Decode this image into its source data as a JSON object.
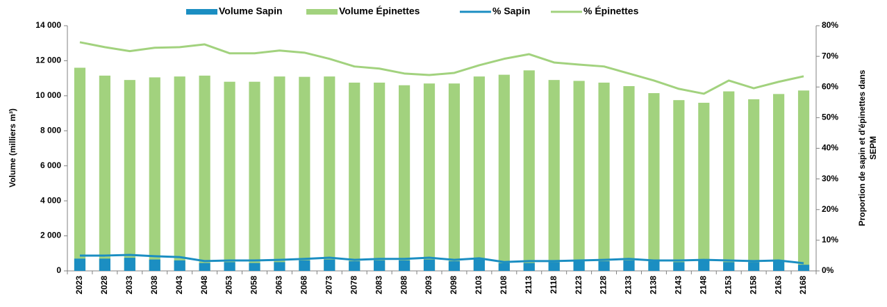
{
  "chart_data": {
    "type": "bar",
    "y_label": "Volume  (milliers m³)",
    "y2_label": [
      "Proportion de sapin et d'épinettes dans",
      "SEPM"
    ],
    "categories": [
      "2023",
      "2028",
      "2033",
      "2038",
      "2043",
      "2048",
      "2053",
      "2058",
      "2063",
      "2068",
      "2073",
      "2078",
      "2083",
      "2088",
      "2093",
      "2098",
      "2103",
      "2108",
      "2113",
      "2118",
      "2123",
      "2128",
      "2133",
      "2138",
      "2143",
      "2148",
      "2153",
      "2158",
      "2163",
      "2168"
    ],
    "series": [
      {
        "name": "Volume Sapin",
        "type": "bar",
        "color": "#1b8ec2",
        "values": [
          700,
          700,
          750,
          650,
          600,
          450,
          500,
          450,
          500,
          600,
          650,
          550,
          600,
          600,
          650,
          550,
          650,
          450,
          450,
          500,
          550,
          550,
          600,
          550,
          500,
          600,
          500,
          500,
          550,
          350
        ]
      },
      {
        "name": "Volume Épinettes",
        "type": "bar",
        "color": "#a2d27e",
        "values": [
          11600,
          11150,
          10900,
          11050,
          11100,
          11150,
          10800,
          10800,
          11100,
          11080,
          11100,
          10750,
          10750,
          10600,
          10700,
          10700,
          11100,
          11200,
          11450,
          10900,
          10850,
          10750,
          10550,
          10150,
          9750,
          9600,
          10250,
          9800,
          10100,
          10300
        ]
      },
      {
        "name": "% Sapin",
        "type": "line",
        "axis": "y2",
        "color": "#1b8ec2",
        "values": [
          5.0,
          5.0,
          5.2,
          4.8,
          4.5,
          3.2,
          3.4,
          3.4,
          3.6,
          3.9,
          4.3,
          3.6,
          3.9,
          3.9,
          4.3,
          3.6,
          4.1,
          2.9,
          3.2,
          3.2,
          3.4,
          3.6,
          3.9,
          3.4,
          3.4,
          3.6,
          3.4,
          3.2,
          3.4,
          2.5
        ]
      },
      {
        "name": "% Épinettes",
        "type": "line",
        "axis": "y2",
        "color": "#a2d27e",
        "values": [
          74.6,
          73.0,
          71.7,
          72.8,
          73.0,
          73.9,
          71.0,
          71.0,
          71.9,
          71.2,
          69.2,
          66.7,
          66.0,
          64.4,
          63.9,
          64.6,
          67.1,
          69.2,
          70.7,
          68.0,
          67.3,
          66.7,
          64.4,
          62.1,
          59.4,
          57.8,
          62.1,
          59.6,
          61.7,
          63.5
        ]
      }
    ],
    "ylim": [
      0,
      14000
    ],
    "yticks": [
      0,
      {
        "value": 2000,
        "label": "2 000"
      },
      {
        "value": 4000,
        "label": "4 000"
      },
      {
        "value": 6000,
        "label": "6 000"
      },
      {
        "value": 8000,
        "label": "8 000"
      },
      {
        "value": 10000,
        "label": "10 000"
      },
      {
        "value": 12000,
        "label": "12 000"
      },
      {
        "value": 14000,
        "label": "14 000"
      }
    ],
    "y2lim": [
      0,
      80
    ],
    "y2ticks": [
      {
        "value": 0,
        "label": "0%"
      },
      {
        "value": 10,
        "label": "10%"
      },
      {
        "value": 20,
        "label": "20%"
      },
      {
        "value": 30,
        "label": "30%"
      },
      {
        "value": 40,
        "label": "40%"
      },
      {
        "value": 50,
        "label": "50%"
      },
      {
        "value": 60,
        "label": "60%"
      },
      {
        "value": 70,
        "label": "70%"
      },
      {
        "value": 80,
        "label": "80%"
      }
    ],
    "grid": false,
    "legend": "top"
  }
}
